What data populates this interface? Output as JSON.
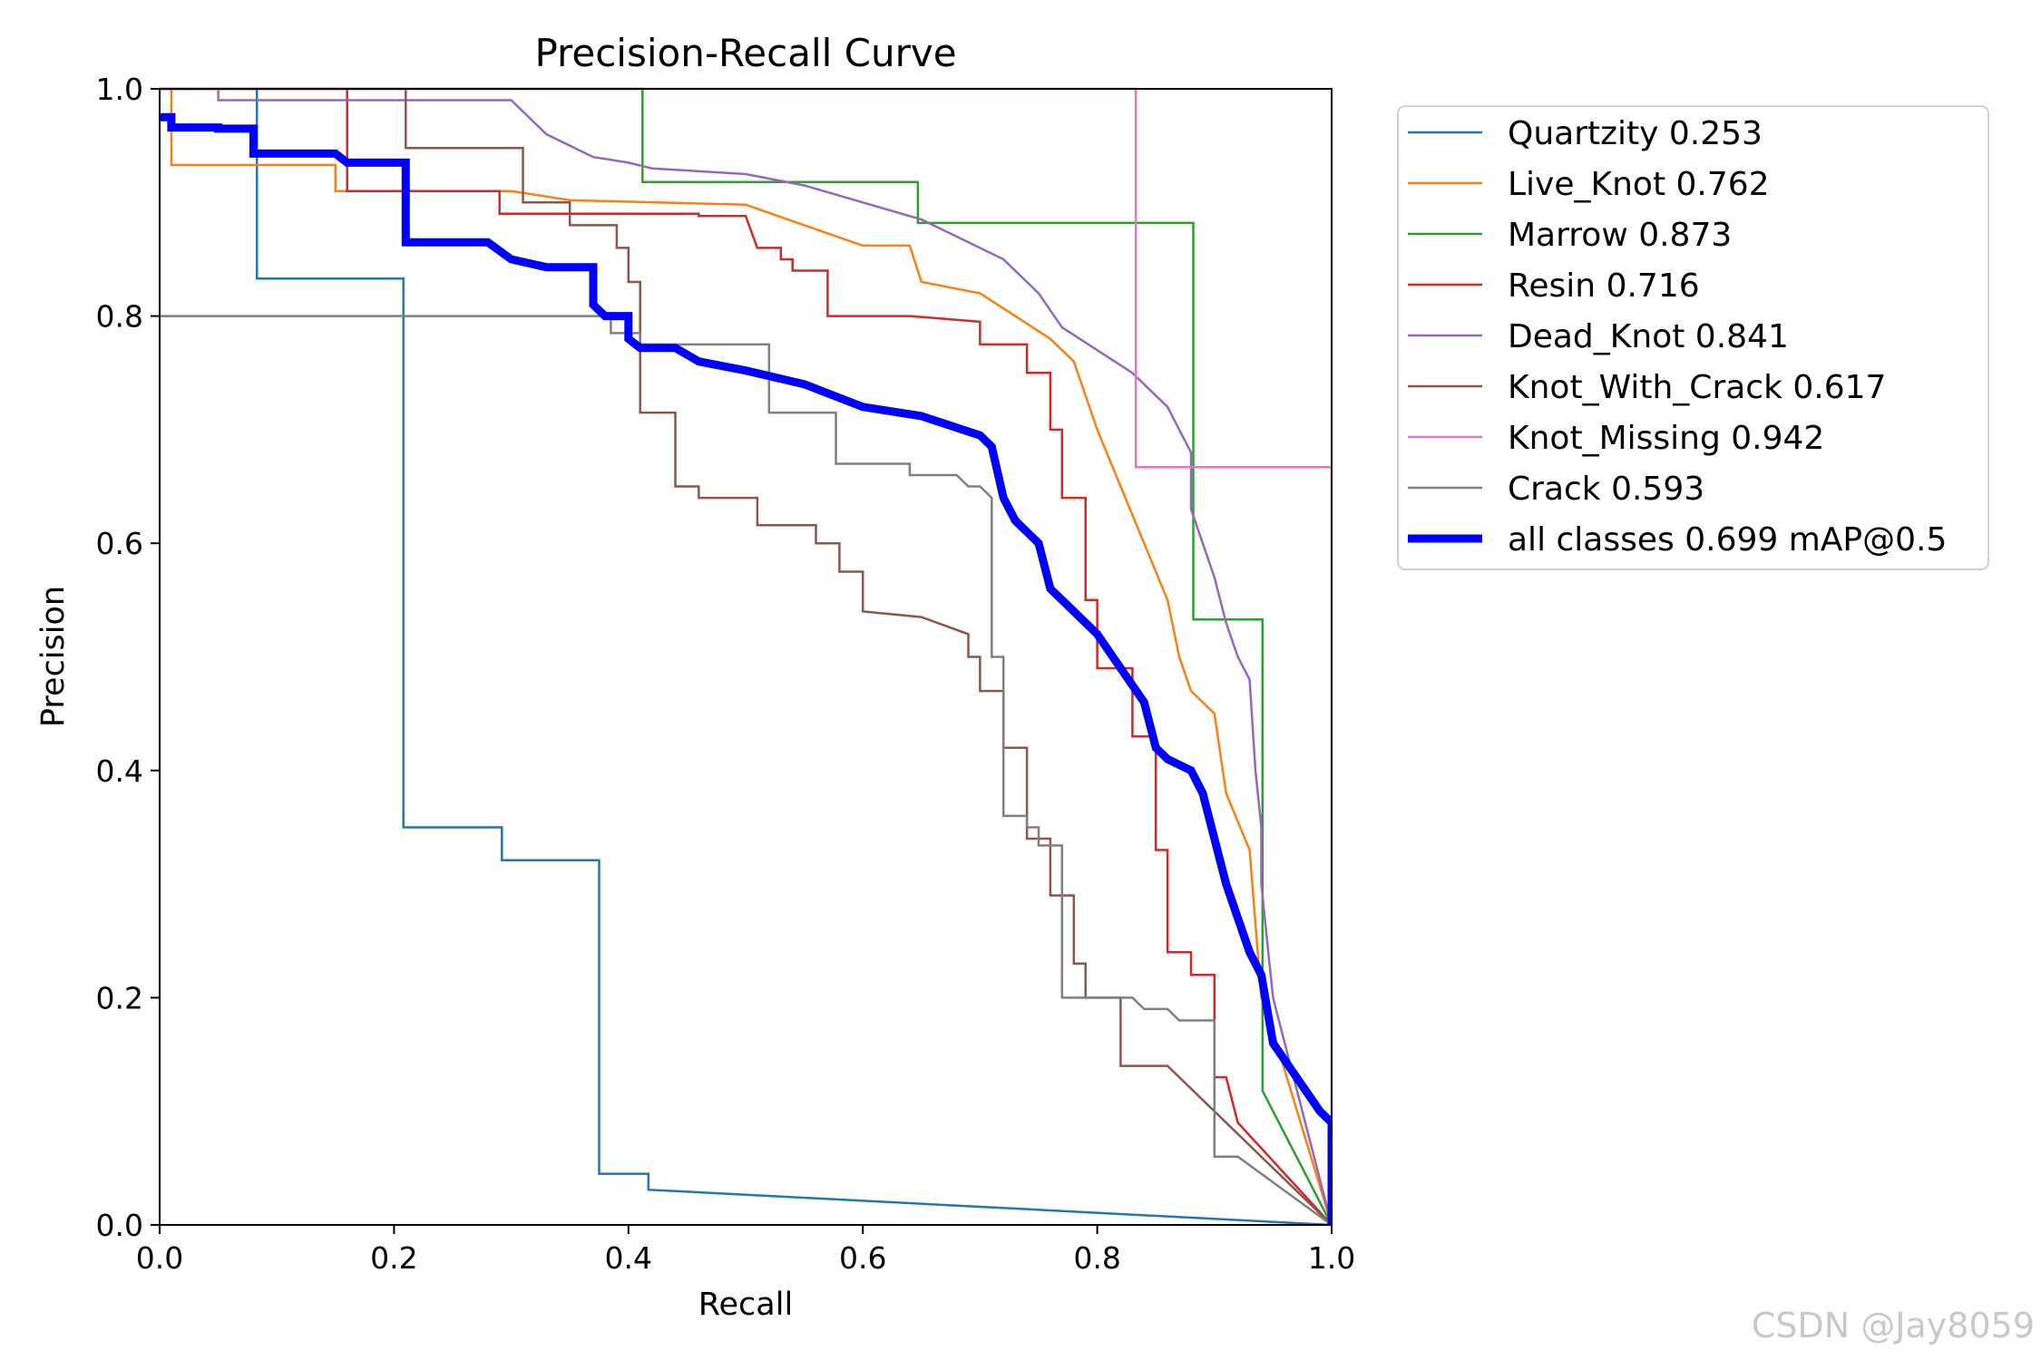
{
  "chart_data": {
    "type": "line",
    "title": "Precision-Recall Curve",
    "xlabel": "Recall",
    "ylabel": "Precision",
    "xlim": [
      0,
      1
    ],
    "ylim": [
      0,
      1
    ],
    "xticks": [
      "0.0",
      "0.2",
      "0.4",
      "0.6",
      "0.8",
      "1.0"
    ],
    "yticks": [
      "0.0",
      "0.2",
      "0.4",
      "0.6",
      "0.8",
      "1.0"
    ],
    "legend_position": "outside-right-top",
    "series": [
      {
        "name": "Quartzity",
        "label": "Quartzity 0.253",
        "color": "#1f77b4",
        "width": "thin",
        "points": [
          [
            0,
            1
          ],
          [
            0.083,
            1
          ],
          [
            0.083,
            0.833
          ],
          [
            0.208,
            0.833
          ],
          [
            0.208,
            0.35
          ],
          [
            0.292,
            0.35
          ],
          [
            0.292,
            0.321
          ],
          [
            0.375,
            0.321
          ],
          [
            0.375,
            0.045
          ],
          [
            0.417,
            0.045
          ],
          [
            0.417,
            0.031
          ],
          [
            1.0,
            0.0
          ]
        ]
      },
      {
        "name": "Live_Knot",
        "label": "Live_Knot 0.762",
        "color": "#ff7f0e",
        "width": "thin",
        "points": [
          [
            0,
            1
          ],
          [
            0.01,
            1
          ],
          [
            0.01,
            0.933
          ],
          [
            0.15,
            0.933
          ],
          [
            0.15,
            0.91
          ],
          [
            0.3,
            0.91
          ],
          [
            0.35,
            0.902
          ],
          [
            0.5,
            0.898
          ],
          [
            0.55,
            0.88
          ],
          [
            0.6,
            0.862
          ],
          [
            0.64,
            0.862
          ],
          [
            0.65,
            0.83
          ],
          [
            0.7,
            0.82
          ],
          [
            0.73,
            0.8
          ],
          [
            0.76,
            0.78
          ],
          [
            0.78,
            0.76
          ],
          [
            0.8,
            0.7
          ],
          [
            0.82,
            0.65
          ],
          [
            0.84,
            0.6
          ],
          [
            0.86,
            0.55
          ],
          [
            0.87,
            0.5
          ],
          [
            0.88,
            0.47
          ],
          [
            0.9,
            0.45
          ],
          [
            0.91,
            0.38
          ],
          [
            0.93,
            0.33
          ],
          [
            0.94,
            0.2
          ],
          [
            0.95,
            0.17
          ],
          [
            1.0,
            0.0
          ]
        ]
      },
      {
        "name": "Marrow",
        "label": "Marrow 0.873",
        "color": "#2ca02c",
        "width": "thin",
        "points": [
          [
            0,
            1
          ],
          [
            0.412,
            1
          ],
          [
            0.412,
            0.918
          ],
          [
            0.647,
            0.918
          ],
          [
            0.647,
            0.882
          ],
          [
            0.882,
            0.882
          ],
          [
            0.882,
            0.533
          ],
          [
            0.941,
            0.533
          ],
          [
            0.941,
            0.118
          ],
          [
            1.0,
            0.0
          ]
        ]
      },
      {
        "name": "Resin",
        "label": "Resin 0.716",
        "color": "#d62728",
        "width": "thin",
        "points": [
          [
            0,
            1
          ],
          [
            0.16,
            1
          ],
          [
            0.16,
            0.91
          ],
          [
            0.29,
            0.91
          ],
          [
            0.29,
            0.89
          ],
          [
            0.46,
            0.89
          ],
          [
            0.46,
            0.888
          ],
          [
            0.47,
            0.888
          ],
          [
            0.48,
            0.888
          ],
          [
            0.5,
            0.888
          ],
          [
            0.51,
            0.86
          ],
          [
            0.53,
            0.86
          ],
          [
            0.53,
            0.85
          ],
          [
            0.54,
            0.85
          ],
          [
            0.54,
            0.84
          ],
          [
            0.57,
            0.84
          ],
          [
            0.57,
            0.8
          ],
          [
            0.64,
            0.8
          ],
          [
            0.7,
            0.795
          ],
          [
            0.7,
            0.775
          ],
          [
            0.74,
            0.775
          ],
          [
            0.74,
            0.75
          ],
          [
            0.76,
            0.75
          ],
          [
            0.76,
            0.7
          ],
          [
            0.77,
            0.7
          ],
          [
            0.77,
            0.64
          ],
          [
            0.79,
            0.64
          ],
          [
            0.79,
            0.55
          ],
          [
            0.8,
            0.55
          ],
          [
            0.8,
            0.49
          ],
          [
            0.83,
            0.49
          ],
          [
            0.83,
            0.43
          ],
          [
            0.85,
            0.43
          ],
          [
            0.85,
            0.33
          ],
          [
            0.86,
            0.33
          ],
          [
            0.86,
            0.24
          ],
          [
            0.88,
            0.24
          ],
          [
            0.88,
            0.22
          ],
          [
            0.9,
            0.22
          ],
          [
            0.9,
            0.13
          ],
          [
            0.91,
            0.13
          ],
          [
            0.92,
            0.09
          ],
          [
            1.0,
            0.0
          ]
        ]
      },
      {
        "name": "Dead_Knot",
        "label": "Dead_Knot 0.841",
        "color": "#9467bd",
        "width": "thin",
        "points": [
          [
            0,
            1
          ],
          [
            0.05,
            1
          ],
          [
            0.05,
            0.99
          ],
          [
            0.3,
            0.99
          ],
          [
            0.33,
            0.96
          ],
          [
            0.37,
            0.94
          ],
          [
            0.4,
            0.935
          ],
          [
            0.42,
            0.93
          ],
          [
            0.5,
            0.925
          ],
          [
            0.55,
            0.915
          ],
          [
            0.6,
            0.9
          ],
          [
            0.65,
            0.885
          ],
          [
            0.68,
            0.87
          ],
          [
            0.72,
            0.85
          ],
          [
            0.75,
            0.82
          ],
          [
            0.77,
            0.79
          ],
          [
            0.8,
            0.77
          ],
          [
            0.83,
            0.75
          ],
          [
            0.86,
            0.72
          ],
          [
            0.87,
            0.7
          ],
          [
            0.88,
            0.68
          ],
          [
            0.88,
            0.63
          ],
          [
            0.89,
            0.6
          ],
          [
            0.9,
            0.57
          ],
          [
            0.91,
            0.53
          ],
          [
            0.92,
            0.5
          ],
          [
            0.93,
            0.48
          ],
          [
            0.935,
            0.4
          ],
          [
            0.94,
            0.35
          ],
          [
            0.94,
            0.3
          ],
          [
            0.945,
            0.25
          ],
          [
            0.95,
            0.2
          ],
          [
            1.0,
            0.0
          ]
        ]
      },
      {
        "name": "Knot_With_Crack",
        "label": "Knot_With_Crack 0.617",
        "color": "#8c564b",
        "width": "thin",
        "points": [
          [
            0,
            1
          ],
          [
            0.21,
            1
          ],
          [
            0.21,
            0.948
          ],
          [
            0.31,
            0.948
          ],
          [
            0.31,
            0.9
          ],
          [
            0.35,
            0.9
          ],
          [
            0.35,
            0.88
          ],
          [
            0.39,
            0.88
          ],
          [
            0.39,
            0.86
          ],
          [
            0.4,
            0.86
          ],
          [
            0.4,
            0.83
          ],
          [
            0.41,
            0.83
          ],
          [
            0.41,
            0.715
          ],
          [
            0.44,
            0.715
          ],
          [
            0.44,
            0.65
          ],
          [
            0.46,
            0.65
          ],
          [
            0.46,
            0.64
          ],
          [
            0.51,
            0.64
          ],
          [
            0.51,
            0.616
          ],
          [
            0.56,
            0.616
          ],
          [
            0.56,
            0.6
          ],
          [
            0.58,
            0.6
          ],
          [
            0.58,
            0.575
          ],
          [
            0.6,
            0.575
          ],
          [
            0.6,
            0.54
          ],
          [
            0.65,
            0.535
          ],
          [
            0.69,
            0.52
          ],
          [
            0.69,
            0.5
          ],
          [
            0.7,
            0.5
          ],
          [
            0.7,
            0.47
          ],
          [
            0.72,
            0.47
          ],
          [
            0.72,
            0.42
          ],
          [
            0.74,
            0.42
          ],
          [
            0.74,
            0.34
          ],
          [
            0.76,
            0.34
          ],
          [
            0.76,
            0.29
          ],
          [
            0.78,
            0.29
          ],
          [
            0.78,
            0.23
          ],
          [
            0.79,
            0.23
          ],
          [
            0.79,
            0.2
          ],
          [
            0.8,
            0.2
          ],
          [
            0.8,
            0.2
          ],
          [
            0.82,
            0.2
          ],
          [
            0.82,
            0.14
          ],
          [
            0.86,
            0.14
          ],
          [
            0.9,
            0.1
          ],
          [
            1.0,
            0.0
          ]
        ]
      },
      {
        "name": "Knot_Missing",
        "label": "Knot_Missing 0.942",
        "color": "#e377c2",
        "width": "thin",
        "points": [
          [
            0,
            1
          ],
          [
            0.833,
            1
          ],
          [
            0.833,
            0.667
          ],
          [
            1.0,
            0.667
          ],
          [
            1.0,
            0.0
          ]
        ]
      },
      {
        "name": "Crack",
        "label": "Crack 0.593",
        "color": "#7f7f7f",
        "width": "thin",
        "points": [
          [
            0,
            0.8
          ],
          [
            0.385,
            0.8
          ],
          [
            0.385,
            0.785
          ],
          [
            0.41,
            0.785
          ],
          [
            0.41,
            0.775
          ],
          [
            0.52,
            0.775
          ],
          [
            0.52,
            0.715
          ],
          [
            0.577,
            0.715
          ],
          [
            0.577,
            0.67
          ],
          [
            0.64,
            0.67
          ],
          [
            0.64,
            0.66
          ],
          [
            0.68,
            0.66
          ],
          [
            0.69,
            0.65
          ],
          [
            0.7,
            0.65
          ],
          [
            0.71,
            0.64
          ],
          [
            0.71,
            0.5
          ],
          [
            0.72,
            0.5
          ],
          [
            0.72,
            0.36
          ],
          [
            0.74,
            0.36
          ],
          [
            0.74,
            0.35
          ],
          [
            0.75,
            0.35
          ],
          [
            0.75,
            0.334
          ],
          [
            0.77,
            0.334
          ],
          [
            0.77,
            0.2
          ],
          [
            0.83,
            0.2
          ],
          [
            0.84,
            0.19
          ],
          [
            0.86,
            0.19
          ],
          [
            0.87,
            0.18
          ],
          [
            0.9,
            0.18
          ],
          [
            0.9,
            0.06
          ],
          [
            0.92,
            0.06
          ],
          [
            1.0,
            0.0
          ]
        ]
      },
      {
        "name": "all classes",
        "label": "all classes 0.699 mAP@0.5",
        "color": "#0000ff",
        "width": "thick",
        "points": [
          [
            0,
            0.975
          ],
          [
            0.01,
            0.975
          ],
          [
            0.01,
            0.966
          ],
          [
            0.05,
            0.966
          ],
          [
            0.05,
            0.965
          ],
          [
            0.08,
            0.965
          ],
          [
            0.08,
            0.943
          ],
          [
            0.15,
            0.943
          ],
          [
            0.16,
            0.935
          ],
          [
            0.21,
            0.935
          ],
          [
            0.21,
            0.865
          ],
          [
            0.28,
            0.865
          ],
          [
            0.3,
            0.85
          ],
          [
            0.33,
            0.843
          ],
          [
            0.37,
            0.843
          ],
          [
            0.37,
            0.81
          ],
          [
            0.38,
            0.8
          ],
          [
            0.4,
            0.8
          ],
          [
            0.4,
            0.78
          ],
          [
            0.41,
            0.772
          ],
          [
            0.44,
            0.772
          ],
          [
            0.46,
            0.76
          ],
          [
            0.5,
            0.752
          ],
          [
            0.55,
            0.74
          ],
          [
            0.6,
            0.72
          ],
          [
            0.65,
            0.712
          ],
          [
            0.7,
            0.695
          ],
          [
            0.71,
            0.685
          ],
          [
            0.72,
            0.64
          ],
          [
            0.73,
            0.62
          ],
          [
            0.75,
            0.6
          ],
          [
            0.76,
            0.56
          ],
          [
            0.78,
            0.54
          ],
          [
            0.8,
            0.52
          ],
          [
            0.82,
            0.49
          ],
          [
            0.84,
            0.46
          ],
          [
            0.85,
            0.42
          ],
          [
            0.86,
            0.41
          ],
          [
            0.88,
            0.4
          ],
          [
            0.89,
            0.38
          ],
          [
            0.9,
            0.34
          ],
          [
            0.91,
            0.3
          ],
          [
            0.92,
            0.27
          ],
          [
            0.93,
            0.24
          ],
          [
            0.94,
            0.22
          ],
          [
            0.95,
            0.16
          ],
          [
            0.97,
            0.13
          ],
          [
            0.99,
            0.1
          ],
          [
            1.0,
            0.09
          ],
          [
            1.0,
            0.0
          ]
        ]
      }
    ]
  },
  "watermark": "CSDN @Jay8059"
}
